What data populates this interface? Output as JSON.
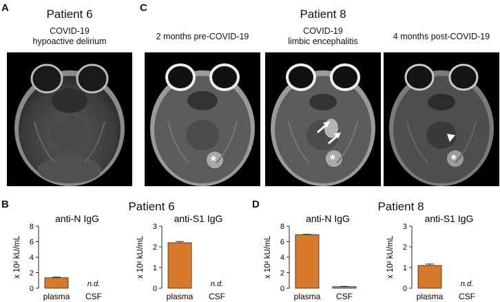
{
  "panels": {
    "A": {
      "letter": "A",
      "title": "Patient 6",
      "subtitle1": "COVID-19",
      "subtitle2": "hypoactive delirium"
    },
    "C": {
      "letter": "C",
      "title": "Patient 8",
      "scans": [
        {
          "line1": "2 months pre-COVID-19",
          "line2": ""
        },
        {
          "line1": "COVID-19",
          "line2": "limbic encephalitis"
        },
        {
          "line1": "4 months post-COVID-19",
          "line2": ""
        }
      ]
    },
    "B": {
      "letter": "B",
      "title": "Patient 6"
    },
    "D": {
      "letter": "D",
      "title": "Patient 8"
    }
  },
  "annotations": {
    "asterisk": "*"
  },
  "colors": {
    "bar_fill": "#d97a2b",
    "csf_bar_fill": "#7b9fc8"
  },
  "chart_data": [
    {
      "type": "bar",
      "panel": "B",
      "title": "anti-N IgG",
      "ylabel": "x 10² kU/mL",
      "ylim": [
        0,
        8
      ],
      "yticks": [
        0,
        2,
        4,
        6,
        8
      ],
      "categories": [
        "plasma",
        "CSF"
      ],
      "values": [
        1.35,
        null
      ],
      "errors": [
        0.08,
        null
      ],
      "nd_label": "n.d."
    },
    {
      "type": "bar",
      "panel": "B",
      "title": "anti-S1 IgG",
      "ylabel": "x 10² kU/mL",
      "ylim": [
        0,
        3
      ],
      "yticks": [
        0,
        1,
        2,
        3
      ],
      "categories": [
        "plasma",
        "CSF"
      ],
      "values": [
        2.2,
        null
      ],
      "errors": [
        0.06,
        null
      ],
      "nd_label": "n.d."
    },
    {
      "type": "bar",
      "panel": "D",
      "title": "anti-N IgG",
      "ylabel": "x 10² kU/mL",
      "ylim": [
        0,
        8
      ],
      "yticks": [
        0,
        2,
        4,
        6,
        8
      ],
      "categories": [
        "plasma",
        "CSF"
      ],
      "values": [
        6.9,
        0.2
      ],
      "errors": [
        0.05,
        0.04
      ],
      "nd_label": ""
    },
    {
      "type": "bar",
      "panel": "D",
      "title": "anti-S1 IgG",
      "ylabel": "x 10² kU/mL",
      "ylim": [
        0,
        3
      ],
      "yticks": [
        0,
        1,
        2,
        3
      ],
      "categories": [
        "plasma",
        "CSF"
      ],
      "values": [
        1.1,
        null
      ],
      "errors": [
        0.07,
        null
      ],
      "nd_label": "n.d."
    }
  ]
}
